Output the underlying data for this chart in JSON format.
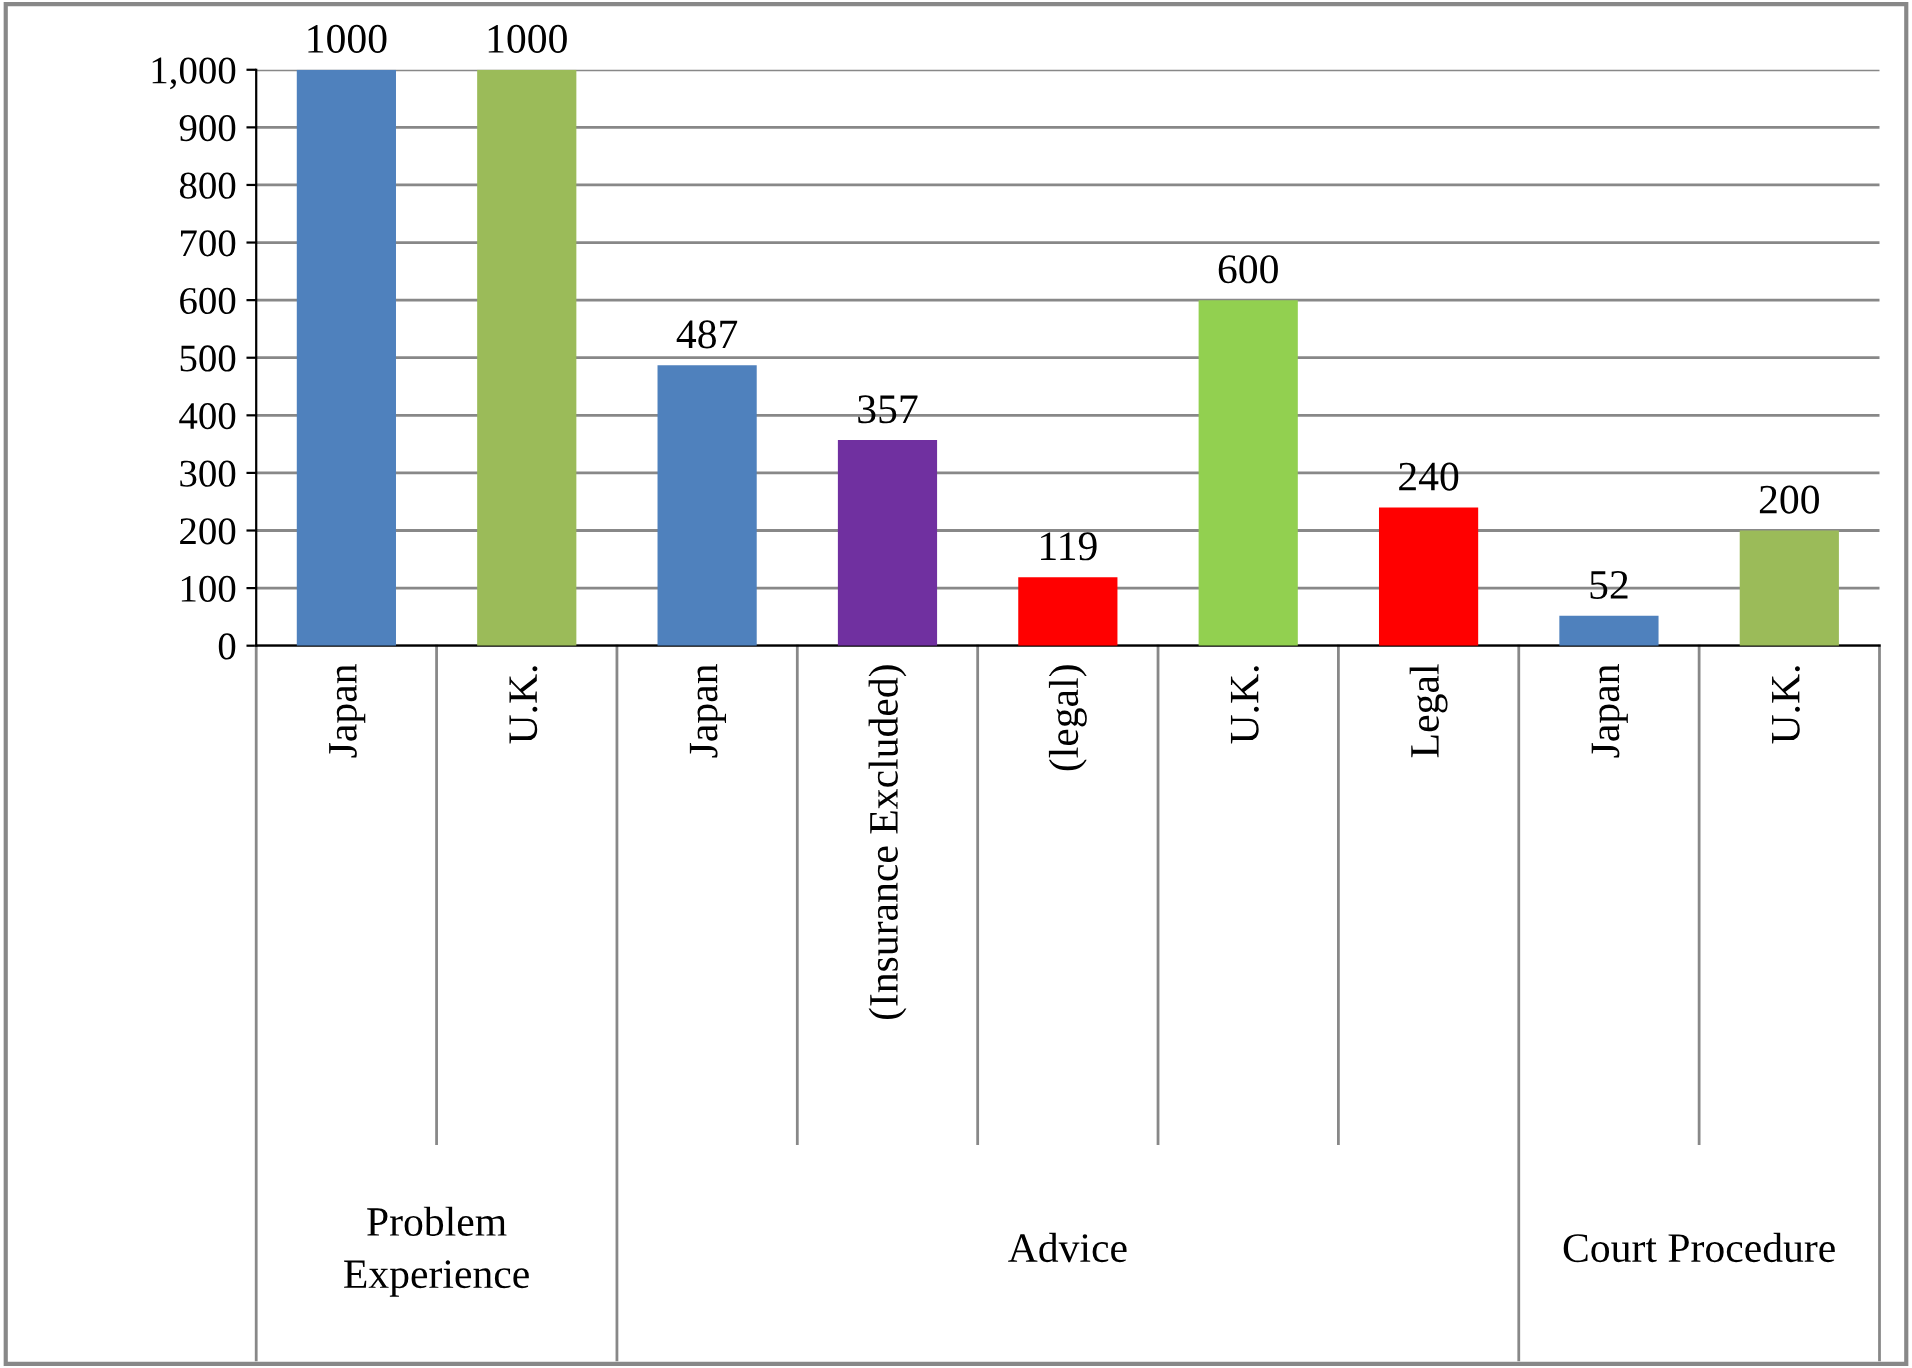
{
  "chart_data": {
    "type": "bar",
    "categories": [
      "Japan",
      "U.K.",
      "Japan",
      "(Insurance Excluded)",
      "(legal)",
      "U.K.",
      "Legal",
      "Japan",
      "U.K."
    ],
    "values": [
      1000,
      1000,
      487,
      357,
      119,
      600,
      240,
      52,
      200
    ],
    "colors": [
      "#4f81bd",
      "#9bbb59",
      "#4f81bd",
      "#7030a0",
      "#ff0000",
      "#92d050",
      "#ff0000",
      "#4f81bd",
      "#9bbb59"
    ],
    "data_labels": true,
    "ylim": [
      0,
      1000
    ],
    "yticks": [
      0,
      100,
      200,
      300,
      400,
      500,
      600,
      700,
      800,
      900,
      {
        "value": 1000,
        "label": "1,000"
      }
    ],
    "grid": "y",
    "annotations": [
      "Problem\nExperience",
      "Advice",
      "Court Procedure"
    ]
  }
}
